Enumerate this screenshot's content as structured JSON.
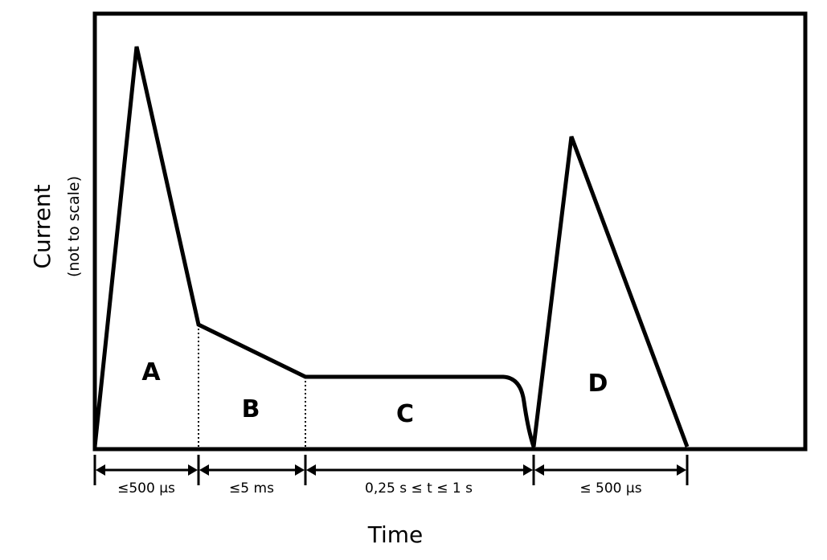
{
  "diagram": {
    "y_axis_title": "Current",
    "y_axis_subtitle": "(not to scale)",
    "x_axis_title": "Time",
    "regions": [
      {
        "id": "A",
        "label": "A"
      },
      {
        "id": "B",
        "label": "B"
      },
      {
        "id": "C",
        "label": "C"
      },
      {
        "id": "D",
        "label": "D"
      }
    ],
    "durations": [
      {
        "segment": "A",
        "label": "≤500 µs"
      },
      {
        "segment": "B",
        "label": "≤5 ms"
      },
      {
        "segment": "C",
        "label": "0,25 s ≤ t ≤ 1 s"
      },
      {
        "segment": "D",
        "label": "≤ 500 µs"
      }
    ],
    "colors": {
      "stroke": "#000000",
      "background": "#ffffff"
    }
  }
}
